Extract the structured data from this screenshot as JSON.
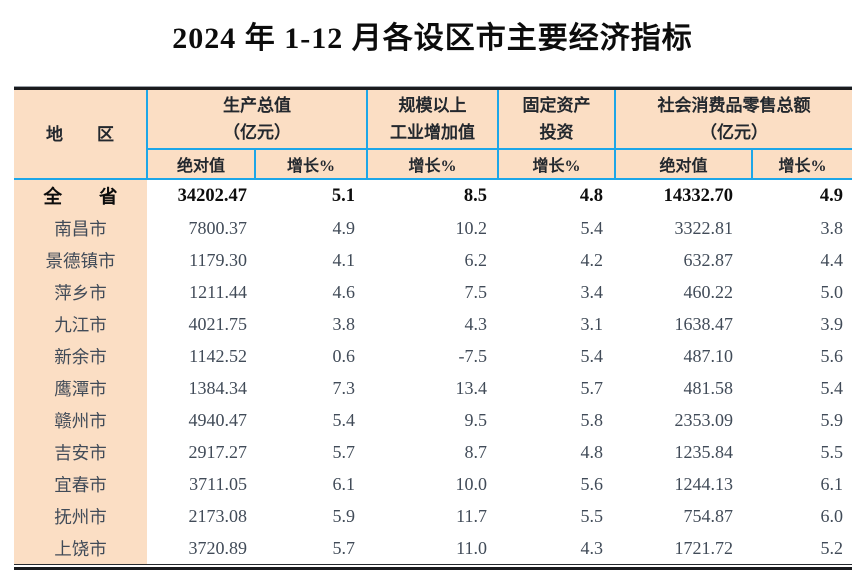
{
  "title": "2024 年 1-12 月各设区市主要经济指标",
  "colors": {
    "table_header_bg": "#fbdec4",
    "header_grid_line": "#1ca6e8",
    "outer_rule": "#1a1b1e",
    "body_text": "#414b58"
  },
  "table": {
    "header": {
      "region_label": "地　　区",
      "groups": [
        {
          "line1": "生产总值",
          "line2": "（亿元）"
        },
        {
          "line1": "规模以上",
          "line2": "工业增加值"
        },
        {
          "line1": "固定资产",
          "line2": "投资"
        },
        {
          "line1": "社会消费品零售总额",
          "line2": "（亿元）"
        }
      ],
      "subs": [
        "绝对值",
        "增长%",
        "增长%",
        "增长%",
        "绝对值",
        "增长%"
      ]
    },
    "rows": [
      {
        "region": "全　　省",
        "bold": true,
        "values": [
          "34202.47",
          "5.1",
          "8.5",
          "4.8",
          "14332.70",
          "4.9"
        ]
      },
      {
        "region": "南昌市",
        "bold": false,
        "values": [
          "7800.37",
          "4.9",
          "10.2",
          "5.4",
          "3322.81",
          "3.8"
        ]
      },
      {
        "region": "景德镇市",
        "bold": false,
        "values": [
          "1179.30",
          "4.1",
          "6.2",
          "4.2",
          "632.87",
          "4.4"
        ]
      },
      {
        "region": "萍乡市",
        "bold": false,
        "values": [
          "1211.44",
          "4.6",
          "7.5",
          "3.4",
          "460.22",
          "5.0"
        ]
      },
      {
        "region": "九江市",
        "bold": false,
        "values": [
          "4021.75",
          "3.8",
          "4.3",
          "3.1",
          "1638.47",
          "3.9"
        ]
      },
      {
        "region": "新余市",
        "bold": false,
        "values": [
          "1142.52",
          "0.6",
          "-7.5",
          "5.4",
          "487.10",
          "5.6"
        ]
      },
      {
        "region": "鹰潭市",
        "bold": false,
        "values": [
          "1384.34",
          "7.3",
          "13.4",
          "5.7",
          "481.58",
          "5.4"
        ]
      },
      {
        "region": "赣州市",
        "bold": false,
        "values": [
          "4940.47",
          "5.4",
          "9.5",
          "5.8",
          "2353.09",
          "5.9"
        ]
      },
      {
        "region": "吉安市",
        "bold": false,
        "values": [
          "2917.27",
          "5.7",
          "8.7",
          "4.8",
          "1235.84",
          "5.5"
        ]
      },
      {
        "region": "宜春市",
        "bold": false,
        "values": [
          "3711.05",
          "6.1",
          "10.0",
          "5.6",
          "1244.13",
          "6.1"
        ]
      },
      {
        "region": "抚州市",
        "bold": false,
        "values": [
          "2173.08",
          "5.9",
          "11.7",
          "5.5",
          "754.87",
          "6.0"
        ]
      },
      {
        "region": "上饶市",
        "bold": false,
        "values": [
          "3720.89",
          "5.7",
          "11.0",
          "4.3",
          "1721.72",
          "5.2"
        ]
      }
    ]
  }
}
